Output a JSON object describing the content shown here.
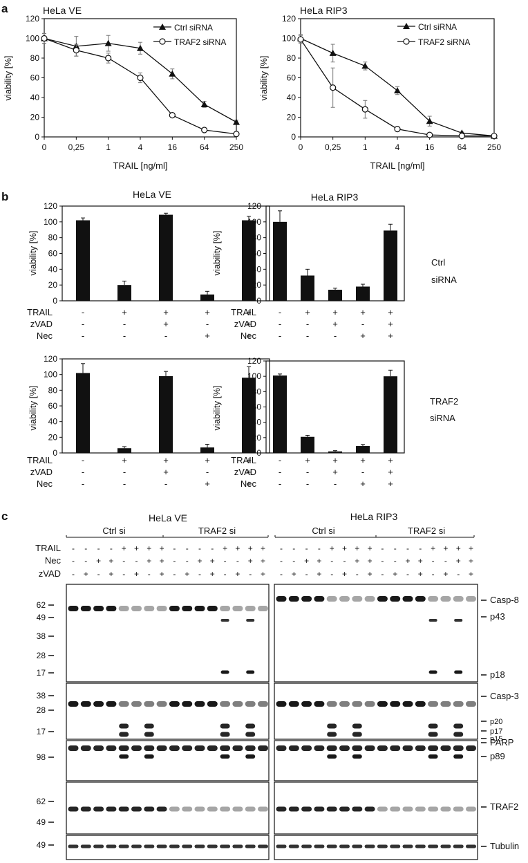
{
  "panel_a": {
    "letter": "a",
    "xlabel": "TRAIL [ng/ml]",
    "ylabel": "viability [%]",
    "y_ticks": [
      "0",
      "20",
      "40",
      "60",
      "80",
      "100",
      "120"
    ],
    "x_ticks": [
      "0",
      "0,25",
      "1",
      "4",
      "16",
      "64",
      "250"
    ],
    "legend": {
      "ctrl": "Ctrl siRNA",
      "traf2": "TRAF2 siRNA"
    }
  },
  "panel_b": {
    "letter": "b",
    "ylabel": "viability [%]",
    "y_ticks": [
      "0",
      "20",
      "40",
      "60",
      "80",
      "100",
      "120"
    ],
    "row_labels": {
      "trail": "TRAIL",
      "zvad": "zVAD",
      "nec": "Nec"
    },
    "treatments": {
      "trail": [
        "-",
        "+",
        "+",
        "+",
        "+"
      ],
      "zvad": [
        "-",
        "-",
        "+",
        "-",
        "+"
      ],
      "nec": [
        "-",
        "-",
        "-",
        "+",
        "+"
      ]
    },
    "side_labels": {
      "ctrl": [
        "Ctrl",
        "siRNA"
      ],
      "traf2": [
        "TRAF2",
        "siRNA"
      ]
    }
  },
  "panel_c": {
    "letter": "c",
    "groups": [
      {
        "title": "HeLa VE",
        "sub": [
          "Ctrl si",
          "TRAF2 si"
        ]
      },
      {
        "title": "HeLa RIP3",
        "sub": [
          "Ctrl si",
          "TRAF2 si"
        ]
      }
    ],
    "row_labels": {
      "trail": "TRAIL",
      "nec": "Nec",
      "zvad": "zVAD"
    },
    "treatments": {
      "trail": [
        "-",
        "-",
        "-",
        "-",
        "+",
        "+",
        "+",
        "+",
        "-",
        "-",
        "-",
        "-",
        "+",
        "+",
        "+",
        "+"
      ],
      "nec": [
        "-",
        "-",
        "+",
        "+",
        "-",
        "-",
        "+",
        "+",
        "-",
        "-",
        "+",
        "+",
        "-",
        "-",
        "+",
        "+"
      ],
      "zvad": [
        "-",
        "+",
        "-",
        "+",
        "-",
        "+",
        "-",
        "+",
        "-",
        "+",
        "-",
        "+",
        "-",
        "+",
        "-",
        "+"
      ]
    },
    "mw_markers": [
      "62",
      "49",
      "38",
      "28",
      "17",
      "38",
      "28",
      "17",
      "98",
      "62",
      "49",
      "49"
    ],
    "band_labels": [
      "Casp-8",
      "p43",
      "p18",
      "Casp-3",
      "p20",
      "p17",
      "p15",
      "PARP",
      "p89",
      "TRAF2",
      "Tubulin"
    ]
  },
  "chart_data": [
    {
      "type": "line",
      "title": "HeLa VE",
      "xlabel": "TRAIL [ng/ml]",
      "ylabel": "viability [%]",
      "categories": [
        "0",
        "0,25",
        "1",
        "4",
        "16",
        "64",
        "250"
      ],
      "ylim": [
        0,
        120
      ],
      "legend_position": "top-right",
      "series": [
        {
          "name": "Ctrl siRNA",
          "marker": "triangle",
          "values": [
            100,
            92,
            95,
            90,
            64,
            33,
            15
          ],
          "errors": [
            5,
            10,
            8,
            6,
            5,
            3,
            2
          ]
        },
        {
          "name": "TRAF2 siRNA",
          "marker": "circle",
          "values": [
            100,
            88,
            80,
            60,
            22,
            7,
            3
          ],
          "errors": [
            5,
            6,
            5,
            5,
            2,
            1,
            1
          ]
        }
      ]
    },
    {
      "type": "line",
      "title": "HeLa RIP3",
      "xlabel": "TRAIL [ng/ml]",
      "ylabel": "viability [%]",
      "categories": [
        "0",
        "0,25",
        "1",
        "4",
        "16",
        "64",
        "250"
      ],
      "ylim": [
        0,
        120
      ],
      "legend_position": "top-right",
      "series": [
        {
          "name": "Ctrl siRNA",
          "marker": "triangle",
          "values": [
            100,
            85,
            72,
            47,
            16,
            4,
            1
          ],
          "errors": [
            4,
            9,
            4,
            4,
            5,
            1,
            1
          ]
        },
        {
          "name": "TRAF2 siRNA",
          "marker": "circle",
          "values": [
            99,
            50,
            28,
            8,
            2,
            1,
            1
          ],
          "errors": [
            4,
            20,
            9,
            2,
            1,
            1,
            1
          ]
        }
      ]
    },
    {
      "type": "bar",
      "title": "HeLa VE",
      "ylabel": "viability [%]",
      "categories": [
        "1",
        "2",
        "3",
        "4",
        "5"
      ],
      "ylim": [
        0,
        120
      ],
      "series": [
        {
          "values": [
            102,
            20,
            109,
            8,
            102
          ],
          "errors": [
            3,
            5,
            2,
            4,
            5
          ]
        }
      ]
    },
    {
      "type": "bar",
      "title": "HeLa RIP3",
      "ylabel": "viability [%]",
      "categories": [
        "1",
        "2",
        "3",
        "4",
        "5"
      ],
      "ylim": [
        0,
        120
      ],
      "series": [
        {
          "values": [
            100,
            32,
            14,
            18,
            89
          ],
          "errors": [
            14,
            8,
            2,
            3,
            8
          ]
        }
      ]
    },
    {
      "type": "bar",
      "title": "",
      "ylabel": "viability [%]",
      "categories": [
        "1",
        "2",
        "3",
        "4",
        "5"
      ],
      "ylim": [
        0,
        120
      ],
      "series": [
        {
          "values": [
            102,
            6,
            98,
            7,
            96
          ],
          "errors": [
            12,
            2,
            6,
            4,
            14
          ]
        }
      ]
    },
    {
      "type": "bar",
      "title": "",
      "ylabel": "viability [%]",
      "categories": [
        "1",
        "2",
        "3",
        "4",
        "5"
      ],
      "ylim": [
        0,
        120
      ],
      "series": [
        {
          "values": [
            101,
            21,
            2,
            9,
            100
          ],
          "errors": [
            2,
            2,
            1,
            2,
            8
          ]
        }
      ]
    }
  ]
}
